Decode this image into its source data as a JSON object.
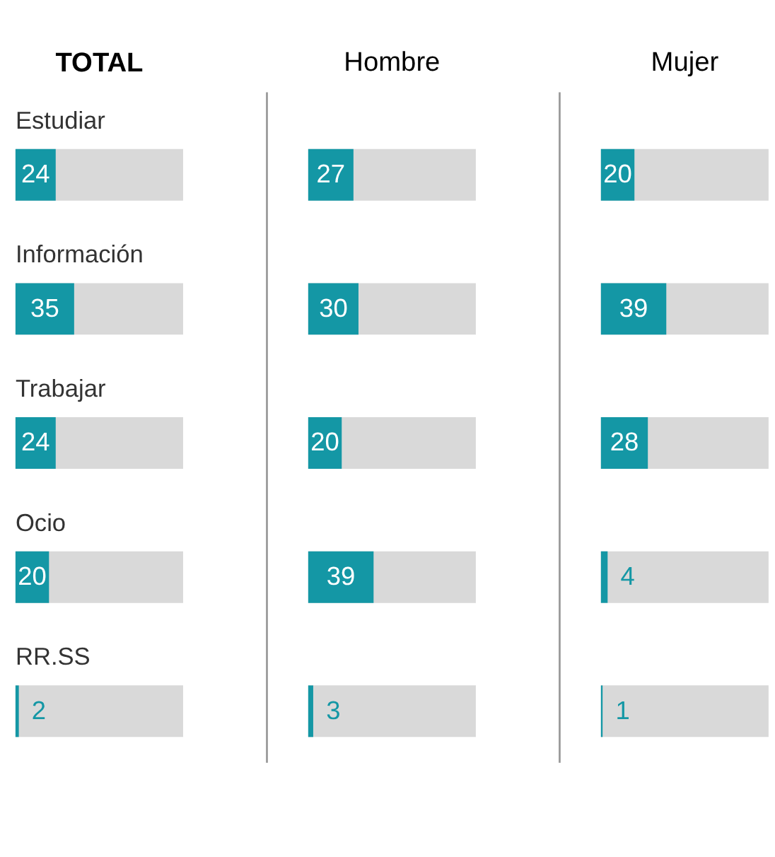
{
  "chart_data": [
    {
      "type": "bar",
      "orientation": "horizontal",
      "title": "TOTAL",
      "categories": [
        "Estudiar",
        "Información",
        "Trabajar",
        "Ocio",
        "RR.SS"
      ],
      "values": [
        24,
        35,
        24,
        20,
        2
      ],
      "color": "#1497a5",
      "xlim": [
        0,
        100
      ],
      "data_labels": true,
      "tick_labels": false
    },
    {
      "type": "bar",
      "orientation": "horizontal",
      "title": "Hombre",
      "categories": [
        null,
        null,
        null,
        null,
        null
      ],
      "values": [
        27,
        30,
        20,
        39,
        3
      ],
      "color": "#1497a5",
      "xlim": [
        0,
        100
      ],
      "data_labels": true,
      "tick_labels": false
    },
    {
      "type": "bar",
      "orientation": "horizontal",
      "title": "Mujer",
      "categories": [
        null,
        null,
        null,
        null,
        null
      ],
      "values": [
        20,
        39,
        28,
        4,
        1
      ],
      "color": "#1497a5",
      "xlim": [
        0,
        100
      ],
      "data_labels": true,
      "tick_labels": false
    }
  ]
}
